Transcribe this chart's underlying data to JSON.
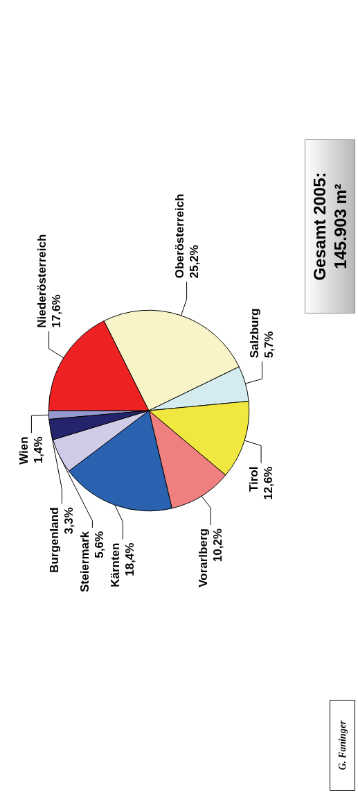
{
  "chart_data": {
    "type": "pie",
    "categories": [
      "Wien",
      "Niederösterreich",
      "Oberösterreich",
      "Salzburg",
      "Tirol",
      "Vorarlberg",
      "Kärnten",
      "Steiermark",
      "Burgenland"
    ],
    "values": [
      1.4,
      17.6,
      25.2,
      5.7,
      12.6,
      10.2,
      18.4,
      5.6,
      3.3
    ],
    "value_labels": [
      "1,4%",
      "17,6%",
      "25,2%",
      "5,7%",
      "12,6%",
      "10,2%",
      "18,4%",
      "5,6%",
      "3,3%"
    ],
    "colors": [
      "#9898d0",
      "#ee2222",
      "#f8f4c8",
      "#d4ecf0",
      "#f0e840",
      "#f08080",
      "#2a62b0",
      "#d0cce8",
      "#24246c"
    ],
    "annotations": [
      "Gesamt 2005:\n145.903 m²",
      "G. Faninger"
    ],
    "legend": false
  }
}
